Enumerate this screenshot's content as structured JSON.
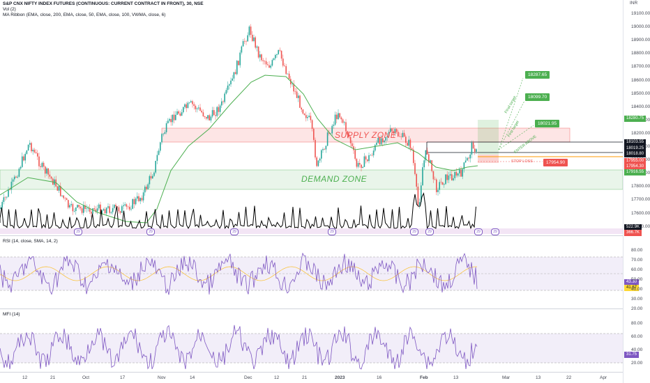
{
  "legend": {
    "title": "S&P CNX NIFTY INDEX FUTURES (CONTINUOUS: CURRENT CONTRACT IN FRONT), 30, NSE",
    "vol": "Vol (2)",
    "ma_ribbon": "MA Ribbon (EMA, close, 200, EMA, close, 50, EMA, close, 100, VWMA, close, 6)",
    "rsi": "RSI (14, close, SMA, 14, 2)",
    "mfi": "MFI (14)"
  },
  "currency": "INR",
  "price_axis": [
    "19100.00",
    "19000.00",
    "18900.00",
    "18800.00",
    "18700.00",
    "18600.00",
    "18500.00",
    "18400.00",
    "18300.00",
    "18200.00",
    "18100.00",
    "18000.00",
    "17900.00",
    "17800.00",
    "17700.00",
    "17600.00",
    "17500.00"
  ],
  "rsi_axis": [
    "80.00",
    "70.00",
    "60.00",
    "50.00",
    "40.00",
    "30.00",
    "20.00"
  ],
  "mfi_axis": [
    "80.00",
    "60.00",
    "40.00",
    "20.00"
  ],
  "time_axis": [
    "12",
    "21",
    "Oct",
    "17",
    "Nov",
    "14",
    "Dec",
    "12",
    "21",
    "2023",
    "16",
    "Feb",
    "13",
    "Mar",
    "13",
    "22",
    "Apr"
  ],
  "price_tags": {
    "upper": "18280.75",
    "last": "18103.55",
    "t1": "18019.25",
    "t2": "18018.80",
    "r1": "17955.00",
    "r2": "17954.30",
    "g1": "17916.55",
    "vol1": "522.9K",
    "vol2": "366.7K",
    "rsi1": "43.30",
    "rsi2": "41.67",
    "mfi1": "31.75"
  },
  "annotations": {
    "supply_zone": "SUPPLY ZONE",
    "demand_zone": "DEMAND ZONE",
    "stop_loss": "STOP LOSS",
    "stop_loss_price": "17954.90",
    "enter_above": "ENTER ABOVE",
    "first_target": "First target",
    "final_target": "Final target",
    "target_boxes": [
      "18287.65",
      "18099.70",
      "18021.95"
    ]
  },
  "event_badges": [
    "29",
    "29",
    "29",
    "29",
    "29",
    "29",
    "29",
    "29"
  ],
  "colors": {
    "supply": "#ef5350",
    "demand": "#4caf50",
    "rsi_line": "#7e57c2",
    "band": "#f3e5f5"
  }
}
